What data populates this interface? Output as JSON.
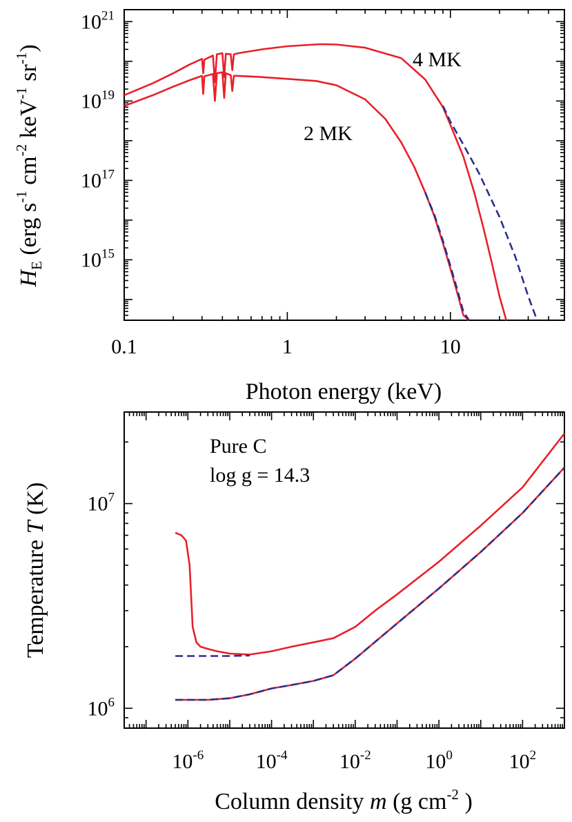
{
  "chart_data": [
    {
      "type": "line",
      "xscale": "log",
      "yscale": "log",
      "xlim": [
        0.1,
        50
      ],
      "ylim": [
        30000000000000.0,
        2e+21
      ],
      "xlabel": "Photon energy  (keV)",
      "ylabel_parts": [
        "H",
        "E",
        " (erg s",
        "-1",
        " cm",
        "-2",
        " keV",
        "-1",
        " sr",
        "-1",
        ")"
      ],
      "x_ticks": [
        {
          "v": 0.1,
          "label": "0.1"
        },
        {
          "v": 1,
          "label": "1"
        },
        {
          "v": 10,
          "label": "10"
        }
      ],
      "y_ticks": [
        {
          "v": 1000000000000000.0,
          "base": "10",
          "exp": "15"
        },
        {
          "v": 1e+17,
          "base": "10",
          "exp": "17"
        },
        {
          "v": 1e+19,
          "base": "10",
          "exp": "19"
        },
        {
          "v": 1e+21,
          "base": "10",
          "exp": "21"
        }
      ],
      "annotations": [
        "4 MK",
        "2 MK"
      ],
      "series": [
        {
          "style": "solid",
          "color": "#e8202a",
          "points": [
            [
              0.1,
              1.4e+19
            ],
            [
              0.15,
              2.8e+19
            ],
            [
              0.2,
              5e+19
            ],
            [
              0.25,
              8.2e+19
            ],
            [
              0.3,
              1.15e+20
            ],
            [
              0.305,
              5e+19
            ],
            [
              0.31,
              1.1e+20
            ],
            [
              0.35,
              1.4e+20
            ],
            [
              0.36,
              3e+19
            ],
            [
              0.37,
              1.5e+20
            ],
            [
              0.4,
              1.6e+20
            ],
            [
              0.41,
              4e+19
            ],
            [
              0.42,
              1.55e+20
            ],
            [
              0.45,
              1.5e+20
            ],
            [
              0.46,
              6e+19
            ],
            [
              0.47,
              1.5e+20
            ],
            [
              0.5,
              1.6e+20
            ],
            [
              0.7,
              2e+20
            ],
            [
              1,
              2.4e+20
            ],
            [
              1.6,
              2.7e+20
            ],
            [
              2,
              2.65e+20
            ],
            [
              3,
              2.2e+20
            ],
            [
              5,
              1.2e+20
            ],
            [
              7,
              3.5e+19
            ],
            [
              9,
              7e+18
            ],
            [
              10,
              2.5e+18
            ],
            [
              12,
              4e+17
            ],
            [
              14,
              5e+16
            ],
            [
              16,
              6000000000000000.0
            ],
            [
              18,
              800000000000000.0
            ],
            [
              20,
              120000000000000.0
            ],
            [
              22,
              20000000000000.0
            ]
          ]
        },
        {
          "style": "dashed",
          "color": "#2b2f8a",
          "points": [
            [
              9,
              7.5e+18
            ],
            [
              10,
              3e+18
            ],
            [
              12,
              8e+17
            ],
            [
              15,
              1.5e+17
            ],
            [
              20,
              1.2e+16
            ],
            [
              25,
              1200000000000000.0
            ],
            [
              30,
              120000000000000.0
            ],
            [
              34,
              20000000000000.0
            ]
          ]
        },
        {
          "style": "solid",
          "color": "#e8202a",
          "points": [
            [
              0.1,
              7.5e+18
            ],
            [
              0.15,
              1.4e+19
            ],
            [
              0.2,
              2.3e+19
            ],
            [
              0.25,
              3.3e+19
            ],
            [
              0.3,
              4.3e+19
            ],
            [
              0.305,
              1.5e+19
            ],
            [
              0.31,
              4.2e+19
            ],
            [
              0.35,
              4.8e+19
            ],
            [
              0.36,
              1e+19
            ],
            [
              0.37,
              5e+19
            ],
            [
              0.4,
              5.3e+19
            ],
            [
              0.41,
              1.2e+19
            ],
            [
              0.42,
              5e+19
            ],
            [
              0.45,
              4.5e+19
            ],
            [
              0.46,
              1.8e+19
            ],
            [
              0.47,
              4.3e+19
            ],
            [
              0.5,
              4.3e+19
            ],
            [
              0.7,
              4e+19
            ],
            [
              1,
              3.6e+19
            ],
            [
              1.5,
              3.2e+19
            ],
            [
              2,
              2.5e+19
            ],
            [
              3,
              1.1e+19
            ],
            [
              4,
              3.5e+18
            ],
            [
              5,
              9e+17
            ],
            [
              6,
              2.2e+17
            ],
            [
              7,
              5e+16
            ],
            [
              8,
              1.2e+16
            ],
            [
              9,
              2600000000000000.0
            ],
            [
              10,
              600000000000000.0
            ],
            [
              11,
              150000000000000.0
            ],
            [
              12,
              40000000000000.0
            ],
            [
              13,
              13000000000000.0
            ]
          ]
        },
        {
          "style": "dashed",
          "color": "#2b2f8a",
          "points": [
            [
              7,
              5e+16
            ],
            [
              8,
              1.3e+16
            ],
            [
              9,
              3000000000000000.0
            ],
            [
              10,
              700000000000000.0
            ],
            [
              11,
              180000000000000.0
            ],
            [
              12,
              50000000000000.0
            ],
            [
              13,
              15000000000000.0
            ]
          ]
        }
      ]
    },
    {
      "type": "line",
      "xscale": "log",
      "yscale": "log",
      "xlim": [
        3e-08,
        1000
      ],
      "ylim": [
        800000.0,
        28000000.0
      ],
      "xlabel_parts": [
        "Column density ",
        "m",
        "  (g cm",
        "-2",
        " )"
      ],
      "ylabel_parts": [
        "Temperature ",
        "T",
        "  (K)"
      ],
      "x_ticks": [
        {
          "v": 1e-06,
          "base": "10",
          "exp": "-6"
        },
        {
          "v": 0.0001,
          "base": "10",
          "exp": "-4"
        },
        {
          "v": 0.01,
          "base": "10",
          "exp": "-2"
        },
        {
          "v": 1,
          "base": "10",
          "exp": "0"
        },
        {
          "v": 100,
          "base": "10",
          "exp": "2"
        }
      ],
      "y_ticks": [
        {
          "v": 1000000.0,
          "base": "10",
          "exp": "6"
        },
        {
          "v": 10000000.0,
          "base": "10",
          "exp": "7"
        }
      ],
      "annotations": [
        "Pure C",
        "log g = 14.3"
      ],
      "series": [
        {
          "style": "solid",
          "color": "#e8202a",
          "points": [
            [
              5e-07,
              7200000.0
            ],
            [
              7e-07,
              7000000.0
            ],
            [
              9e-07,
              6600000.0
            ],
            [
              1.1e-06,
              5000000.0
            ],
            [
              1.3e-06,
              2500000.0
            ],
            [
              1.6e-06,
              2100000.0
            ],
            [
              2e-06,
              2000000.0
            ],
            [
              3e-06,
              1950000.0
            ],
            [
              5e-06,
              1900000.0
            ],
            [
              1e-05,
              1850000.0
            ],
            [
              3e-05,
              1830000.0
            ],
            [
              0.0001,
              1900000.0
            ],
            [
              0.0003,
              2000000.0
            ],
            [
              0.001,
              2100000.0
            ],
            [
              0.003,
              2200000.0
            ],
            [
              0.01,
              2500000.0
            ],
            [
              0.03,
              3000000.0
            ],
            [
              0.1,
              3600000.0
            ],
            [
              1,
              5200000.0
            ],
            [
              10,
              7800000.0
            ],
            [
              100,
              12000000.0
            ],
            [
              1000,
              22000000.0
            ]
          ]
        },
        {
          "style": "dashed",
          "color": "#2b2f8a",
          "points": [
            [
              5e-07,
              1800000.0
            ],
            [
              1e-06,
              1800000.0
            ],
            [
              1e-05,
              1800000.0
            ],
            [
              3e-05,
              1810000.0
            ]
          ]
        },
        {
          "style": "solid",
          "color": "#e8202a",
          "points": [
            [
              5e-07,
              1100000.0
            ],
            [
              3e-06,
              1100000.0
            ],
            [
              1e-05,
              1120000.0
            ],
            [
              3e-05,
              1170000.0
            ],
            [
              0.0001,
              1250000.0
            ],
            [
              0.0003,
              1300000.0
            ],
            [
              0.001,
              1360000.0
            ],
            [
              0.003,
              1450000.0
            ],
            [
              0.01,
              1750000.0
            ],
            [
              0.1,
              2600000.0
            ],
            [
              1,
              3850000.0
            ],
            [
              10,
              5800000.0
            ],
            [
              100,
              9000000.0
            ],
            [
              1000,
              15000000.0
            ]
          ]
        },
        {
          "style": "dashed",
          "color": "#2b2f8a",
          "points": [
            [
              5e-07,
              1100000.0
            ],
            [
              3e-06,
              1100000.0
            ],
            [
              1e-05,
              1120000.0
            ],
            [
              3e-05,
              1170000.0
            ],
            [
              0.0001,
              1250000.0
            ],
            [
              0.0003,
              1300000.0
            ],
            [
              0.001,
              1360000.0
            ],
            [
              0.003,
              1450000.0
            ],
            [
              0.01,
              1750000.0
            ],
            [
              0.1,
              2600000.0
            ],
            [
              1,
              3850000.0
            ],
            [
              10,
              5800000.0
            ],
            [
              100,
              9000000.0
            ],
            [
              1000,
              15000000.0
            ]
          ]
        }
      ]
    }
  ]
}
